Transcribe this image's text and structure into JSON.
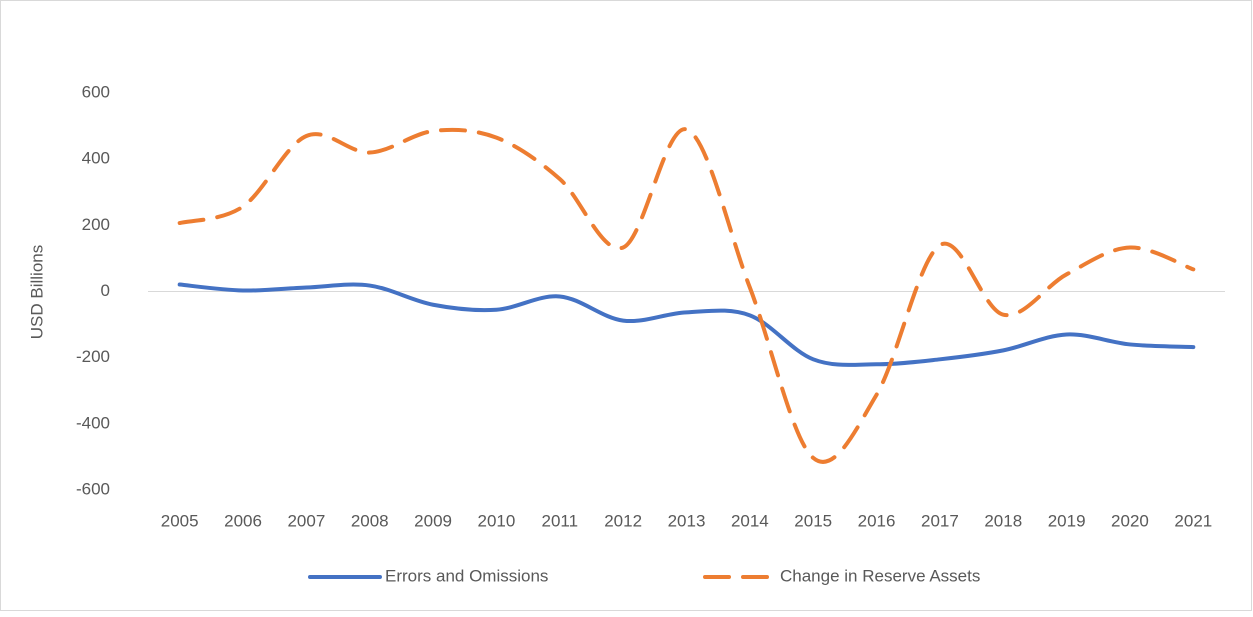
{
  "chart_data": {
    "type": "line",
    "y_label": "USD Billions",
    "categories": [
      "2005",
      "2006",
      "2007",
      "2008",
      "2009",
      "2010",
      "2011",
      "2012",
      "2013",
      "2014",
      "2015",
      "2016",
      "2017",
      "2018",
      "2019",
      "2020",
      "2021"
    ],
    "series": [
      {
        "name": "Errors and Omissions",
        "color": "#4472c4",
        "line_style": "solid",
        "values": [
          21,
          3,
          12,
          18,
          -40,
          -55,
          -15,
          -88,
          -63,
          -72,
          -205,
          -220,
          -205,
          -178,
          -130,
          -160,
          -168
        ]
      },
      {
        "name": "Change in Reserve Assets",
        "color": "#ed7d31",
        "line_style": "dashed",
        "values": [
          207,
          257,
          470,
          420,
          485,
          465,
          340,
          133,
          490,
          12,
          -503,
          -312,
          140,
          -70,
          52,
          133,
          67
        ]
      }
    ],
    "ylim": [
      -600,
      600
    ],
    "yticks": [
      -600,
      -400,
      -200,
      0,
      200,
      400,
      600
    ],
    "smooth": true,
    "grid": false,
    "legend": "bottom"
  }
}
